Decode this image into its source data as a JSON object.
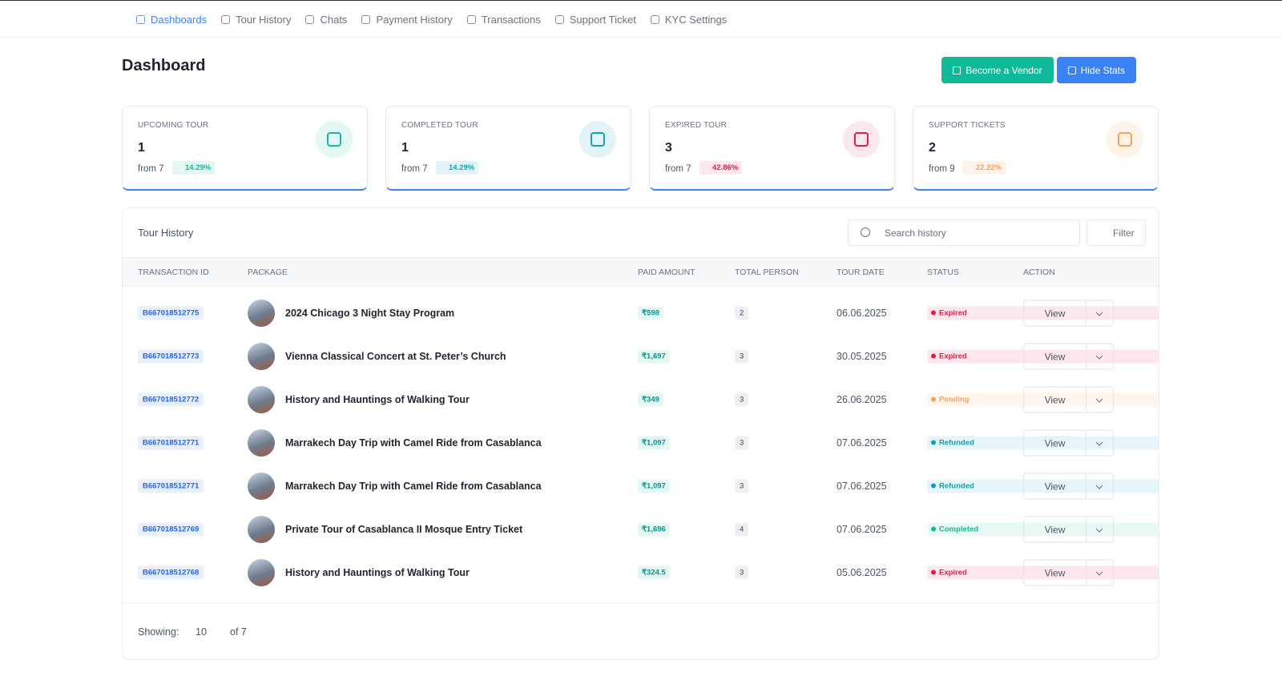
{
  "nav": [
    "Dashboards",
    "Tour History",
    "Chats",
    "Payment History",
    "Transactions",
    "Support Ticket",
    "KYC Settings"
  ],
  "header": {
    "title": "Dashboard",
    "buttons": [
      {
        "label": "Become a Vendor",
        "color": "#10b99a"
      },
      {
        "label": "Hide Stats",
        "color": "#3b82f6"
      }
    ]
  },
  "stats": [
    {
      "label": "UPCOMING TOUR",
      "value": "1",
      "from": "from 7",
      "change": "14.29%",
      "color": "#14b8a6",
      "bg": "#e3f7f3"
    },
    {
      "label": "COMPLETED TOUR",
      "value": "1",
      "from": "from 7",
      "change": "14.29%",
      "color": "#0ea5b7",
      "bg": "#e2f4f7"
    },
    {
      "label": "EXPIRED TOUR",
      "value": "3",
      "from": "from 7",
      "change": "42.86%",
      "color": "#e11d48",
      "bg": "#fde8ee"
    },
    {
      "label": "SUPPORT TICKETS",
      "value": "2",
      "from": "from 9",
      "change": "22.22%",
      "color": "#f5a35c",
      "bg": "#fef3e8"
    }
  ],
  "table": {
    "title": "Tour History",
    "search_placeholder": "Search history",
    "filter": "Filter",
    "columns": [
      "TRANSACTION ID",
      "PACKAGE",
      "PAID AMOUNT",
      "TOTAL PERSON",
      "TOUR DATE",
      "STATUS",
      "ACTION"
    ],
    "rows": [
      {
        "id": "B667018512775",
        "package": "2024 Chicago 3 Night Stay Program",
        "amount": "₹598",
        "persons": "2",
        "date": "06.06.2025",
        "status": "Expired",
        "status_color": "#e11d48",
        "action": "View"
      },
      {
        "id": "B667018512773",
        "package": "Vienna Classical Concert at St. Peter’s Church",
        "amount": "₹1,697",
        "persons": "3",
        "date": "30.05.2025",
        "status": "Expired",
        "status_color": "#e11d48",
        "action": "View"
      },
      {
        "id": "B667018512772",
        "package": "History and Hauntings of Walking Tour",
        "amount": "₹349",
        "persons": "3",
        "date": "26.06.2025",
        "status": "Pending",
        "status_color": "#f5a35c",
        "action": "View"
      },
      {
        "id": "B667018512771",
        "package": "Marrakech Day Trip with Camel Ride from Casablanca",
        "amount": "₹1,097",
        "persons": "3",
        "date": "07.06.2025",
        "status": "Refunded",
        "status_color": "#0e9fb0",
        "action": "View"
      },
      {
        "id": "B667018512771",
        "package": "Marrakech Day Trip with Camel Ride from Casablanca",
        "amount": "₹1,097",
        "persons": "3",
        "date": "07.06.2025",
        "status": "Refunded",
        "status_color": "#0e9fb0",
        "action": "View"
      },
      {
        "id": "B667018512769",
        "package": "Private Tour of Casablanca II Mosque Entry Ticket",
        "amount": "₹1,696",
        "persons": "4",
        "date": "07.06.2025",
        "status": "Completed",
        "status_color": "#10b99a",
        "action": "View"
      },
      {
        "id": "B667018512768",
        "package": "History and Hauntings of Walking Tour",
        "amount": "₹324.5",
        "persons": "3",
        "date": "05.06.2025",
        "status": "Expired",
        "status_color": "#e11d48",
        "action": "View"
      }
    ]
  },
  "footer": {
    "showing": "Showing:",
    "per_page": "10",
    "of": "of 7"
  }
}
